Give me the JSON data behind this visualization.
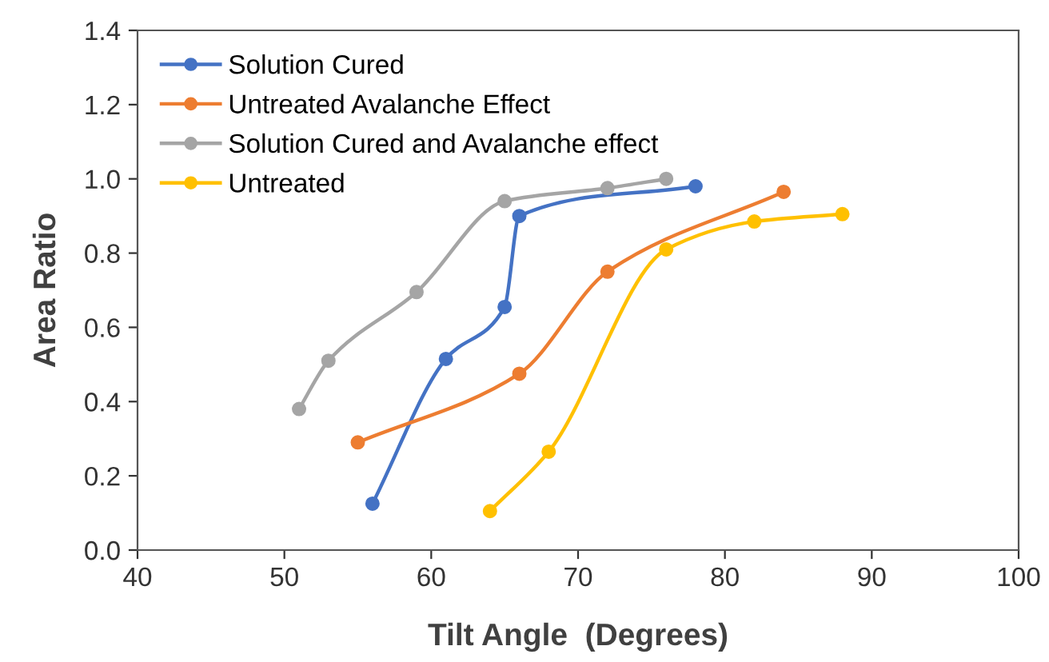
{
  "chart_data": {
    "type": "line",
    "xlabel": "Tilt Angle  (Degrees)",
    "ylabel": "Area Ratio",
    "xlim": [
      40,
      100
    ],
    "xticks": [
      40,
      50,
      60,
      70,
      80,
      90,
      100
    ],
    "ylim": [
      0,
      1.4
    ],
    "yticks": [
      {
        "value": 0,
        "label": "0.0"
      },
      {
        "value": 0.2,
        "label": "0.2"
      },
      {
        "value": 0.4,
        "label": "0.4"
      },
      {
        "value": 0.6,
        "label": "0.6"
      },
      {
        "value": 0.8,
        "label": "0.8"
      },
      {
        "value": 1.0,
        "label": "1.0"
      },
      {
        "value": 1.2,
        "label": "1.2"
      },
      {
        "value": 1.4,
        "label": "1.4"
      }
    ],
    "grid": false,
    "legend": "top left",
    "marker": "circle",
    "line_style": "solid",
    "series": [
      {
        "name": "Solution Cured",
        "color": "#4472c4",
        "x": [
          56,
          61,
          65,
          66,
          78
        ],
        "values": [
          0.125,
          0.515,
          0.655,
          0.9,
          0.98
        ]
      },
      {
        "name": "Untreated Avalanche Effect",
        "color": "#ed7d31",
        "x": [
          55,
          66,
          72,
          84
        ],
        "values": [
          0.29,
          0.475,
          0.75,
          0.965
        ]
      },
      {
        "name": "Solution Cured and Avalanche effect",
        "color": "#a5a5a5",
        "x": [
          51,
          53,
          59,
          65,
          72,
          76
        ],
        "values": [
          0.38,
          0.51,
          0.695,
          0.94,
          0.975,
          1.0
        ]
      },
      {
        "name": "Untreated",
        "color": "#ffc000",
        "x": [
          64,
          68,
          76,
          82,
          88
        ],
        "values": [
          0.105,
          0.265,
          0.81,
          0.885,
          0.905
        ]
      }
    ]
  }
}
